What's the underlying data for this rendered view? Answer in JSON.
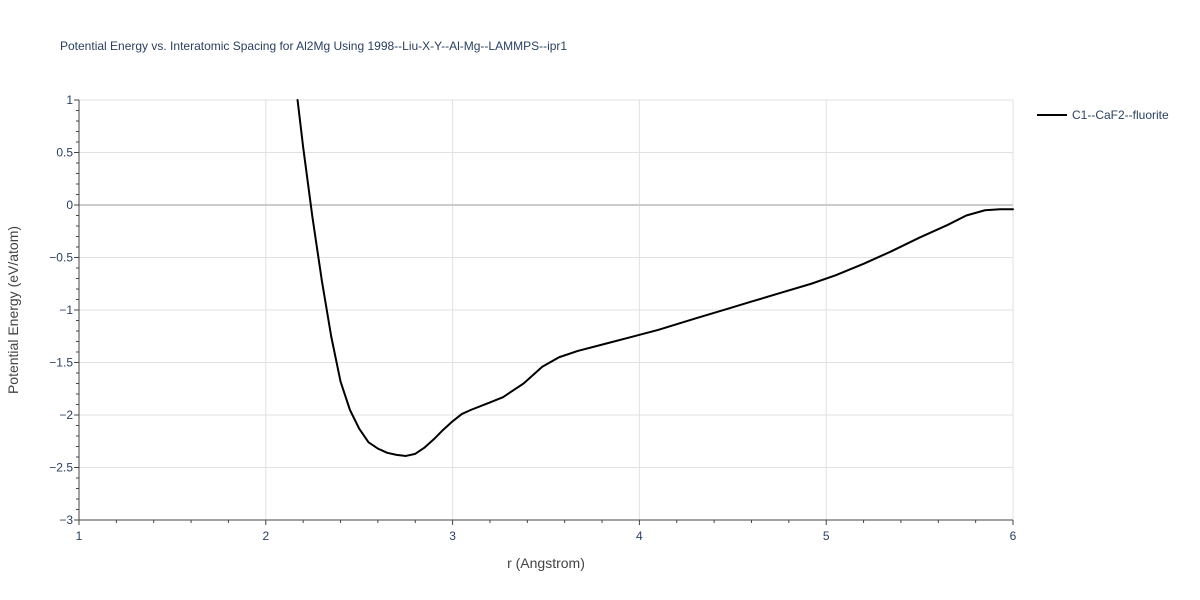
{
  "chart_data": {
    "type": "line",
    "title": "Potential Energy vs. Interatomic Spacing for Al2Mg Using 1998--Liu-X-Y--Al-Mg--LAMMPS--ipr1",
    "xlabel": "r (Angstrom)",
    "ylabel": "Potential Energy (eV/atom)",
    "xlim": [
      1,
      6
    ],
    "ylim": [
      -3,
      1
    ],
    "xticks": [
      1,
      2,
      3,
      4,
      5,
      6
    ],
    "xtick_labels": [
      "1",
      "2",
      "3",
      "4",
      "5",
      "6"
    ],
    "yticks": [
      1,
      0.5,
      0,
      -0.5,
      -1,
      -1.5,
      -2,
      -2.5,
      -3
    ],
    "ytick_labels": [
      "1",
      "0.5",
      "0",
      "−0.5",
      "−1",
      "−1.5",
      "−2",
      "−2.5",
      "−3"
    ],
    "grid": true,
    "legend_position": "top-right",
    "series": [
      {
        "name": "C1--CaF2--fluorite",
        "color": "#000000",
        "x": [
          2.17,
          2.2,
          2.25,
          2.3,
          2.35,
          2.4,
          2.45,
          2.5,
          2.55,
          2.6,
          2.65,
          2.7,
          2.75,
          2.8,
          2.85,
          2.9,
          2.95,
          3.0,
          3.05,
          3.1,
          3.2,
          3.27,
          3.38,
          3.48,
          3.57,
          3.67,
          3.8,
          3.95,
          4.1,
          4.3,
          4.47,
          4.6,
          4.75,
          4.92,
          5.05,
          5.2,
          5.35,
          5.5,
          5.65,
          5.75,
          5.85,
          5.93,
          6.0
        ],
        "y": [
          1.0,
          0.55,
          -0.12,
          -0.72,
          -1.25,
          -1.68,
          -1.95,
          -2.13,
          -2.26,
          -2.32,
          -2.36,
          -2.38,
          -2.39,
          -2.37,
          -2.31,
          -2.23,
          -2.14,
          -2.06,
          -1.99,
          -1.95,
          -1.88,
          -1.83,
          -1.7,
          -1.54,
          -1.45,
          -1.39,
          -1.33,
          -1.26,
          -1.19,
          -1.08,
          -0.99,
          -0.92,
          -0.84,
          -0.75,
          -0.67,
          -0.56,
          -0.44,
          -0.31,
          -0.19,
          -0.1,
          -0.05,
          -0.04,
          -0.04
        ]
      }
    ]
  }
}
